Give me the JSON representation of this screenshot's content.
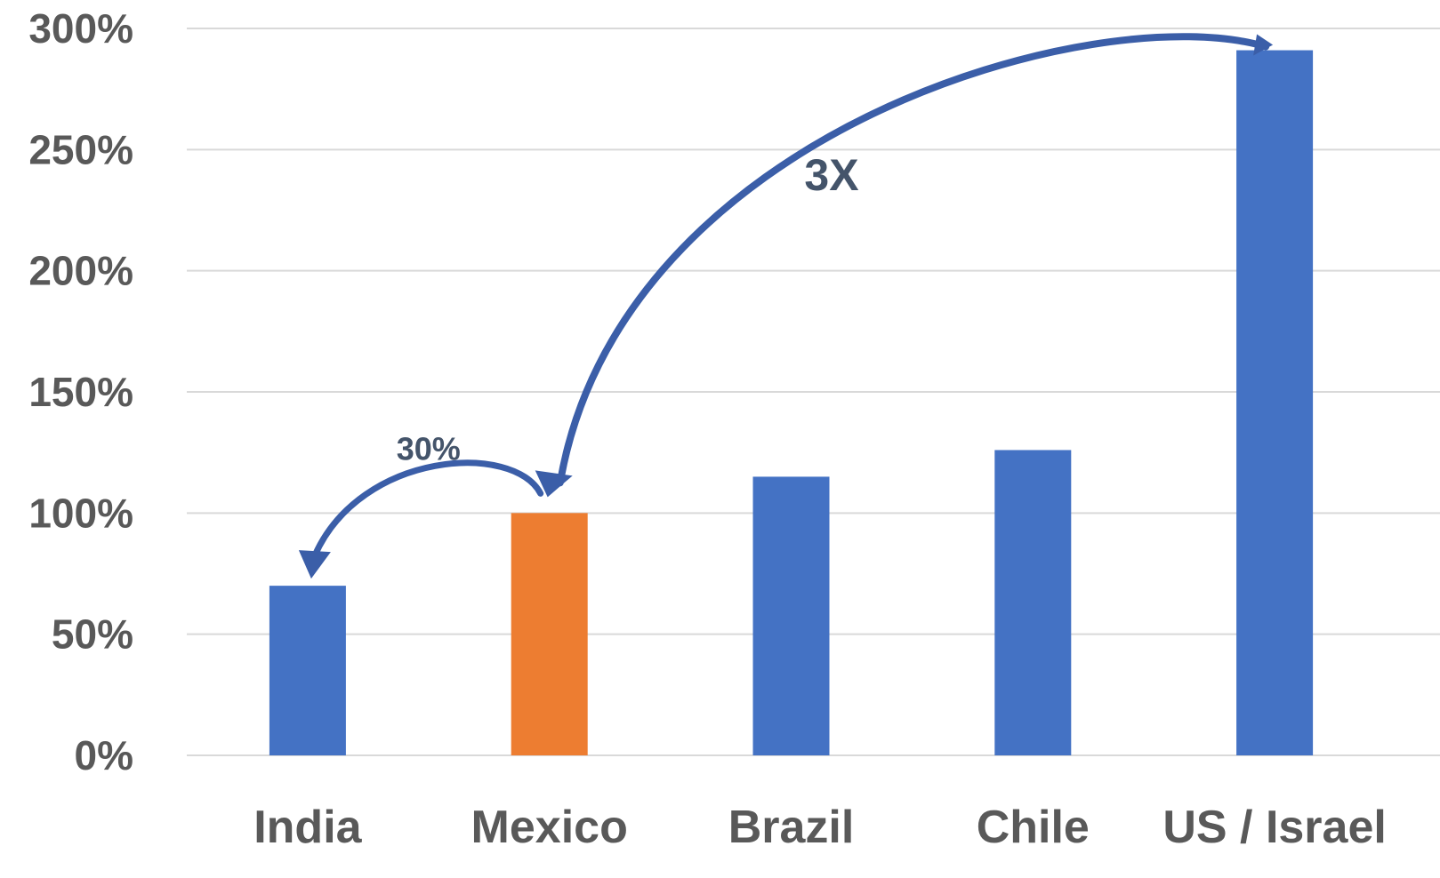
{
  "chart_data": {
    "type": "bar",
    "categories": [
      "India",
      "Mexico",
      "Brazil",
      "Chile",
      "US / Israel"
    ],
    "values": [
      70,
      100,
      115,
      126,
      291
    ],
    "bar_colors": [
      "#4472c4",
      "#ed7d31",
      "#4472c4",
      "#4472c4",
      "#4472c4"
    ],
    "ylim": [
      0,
      300
    ],
    "yticks": [
      0,
      50,
      100,
      150,
      200,
      250,
      300
    ],
    "ytick_labels": [
      "0%",
      "50%",
      "100%",
      "150%",
      "200%",
      "250%",
      "300%"
    ],
    "grid": true,
    "title": "",
    "xlabel": "",
    "ylabel": "",
    "annotations": [
      {
        "text": "30%",
        "from": "Mexico",
        "to": "India"
      },
      {
        "text": "3X",
        "from": "US / Israel",
        "to": "Mexico"
      }
    ],
    "arrow_color": "#3b5ea8"
  }
}
